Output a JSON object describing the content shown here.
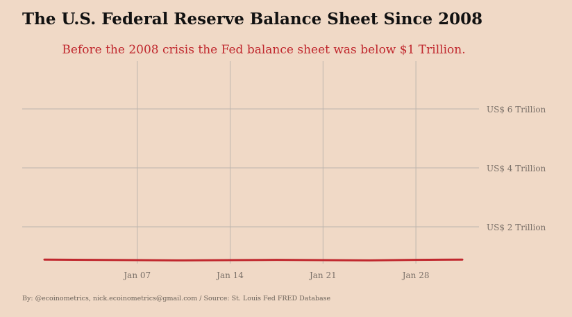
{
  "header": {
    "title": "The U.S. Federal Reserve Balance Sheet Since 2008",
    "subtitle": "Before the 2008 crisis the Fed balance sheet was below $1 Trillion."
  },
  "footer": {
    "credit": "By: @ecoinometrics, nick.ecoinometrics@gmail.com / Source: St. Louis Fed FRED Database"
  },
  "colors": {
    "background": "#F0D9C6",
    "line": "#C0272D",
    "grid": "#BDB5AE"
  },
  "chart_data": {
    "type": "line",
    "title": "The U.S. Federal Reserve Balance Sheet Since 2008",
    "subtitle": "Before the 2008 crisis the Fed balance sheet was below $1 Trillion.",
    "xlabel": "",
    "ylabel": "",
    "x_ticks": [
      "Jan 07",
      "Jan 14",
      "Jan 21",
      "Jan 28"
    ],
    "y_ticks": [
      {
        "value": 2,
        "label": "US$ 2 Trillion"
      },
      {
        "value": 4,
        "label": "US$ 4 Trillion"
      },
      {
        "value": 6,
        "label": "US$ 6 Trillion"
      }
    ],
    "ylim": [
      0,
      7
    ],
    "grid": true,
    "series": [
      {
        "x": [
          "Jan 01",
          "Jan 04",
          "Jan 07",
          "Jan 10",
          "Jan 14",
          "Jan 17",
          "Jan 21",
          "Jan 24",
          "Jan 28",
          "Jan 30"
        ],
        "values": [
          0.89,
          0.88,
          0.87,
          0.86,
          0.87,
          0.88,
          0.87,
          0.86,
          0.88,
          0.89
        ]
      }
    ]
  }
}
